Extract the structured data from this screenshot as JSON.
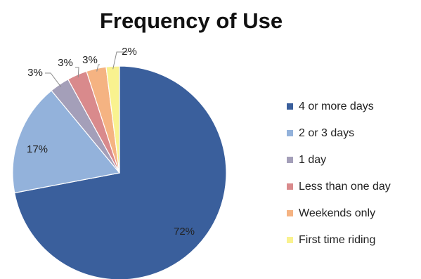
{
  "chart_data": {
    "type": "pie",
    "title": "Frequency of Use",
    "legend_position": "right",
    "slices": [
      {
        "label": "4 or more days",
        "value": 72,
        "value_label": "72%",
        "color": "#3a5f9c"
      },
      {
        "label": "2 or 3 days",
        "value": 17,
        "value_label": "17%",
        "color": "#93b2db"
      },
      {
        "label": "1 day",
        "value": 3,
        "value_label": "3%",
        "color": "#a49fb9"
      },
      {
        "label": "Less than one day",
        "value": 3,
        "value_label": "3%",
        "color": "#d98a8c"
      },
      {
        "label": "Weekends only",
        "value": 3,
        "value_label": "3%",
        "color": "#f5b382"
      },
      {
        "label": "First time riding",
        "value": 2,
        "value_label": "2%",
        "color": "#f9f28f"
      }
    ]
  }
}
